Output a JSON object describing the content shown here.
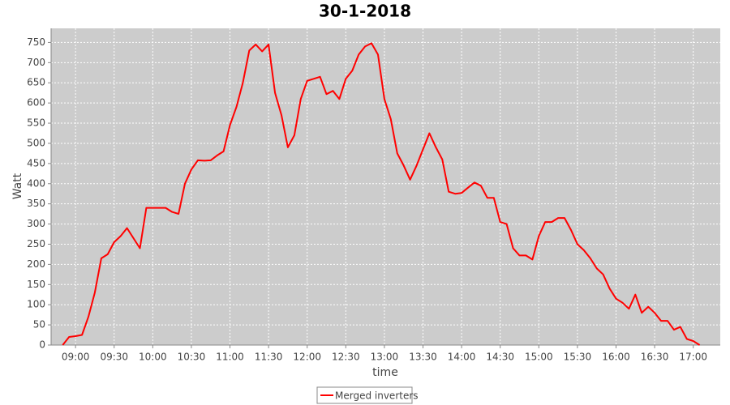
{
  "chart_data": {
    "type": "line",
    "title": "30-1-2018",
    "x_label": "time",
    "y_label": "Watt",
    "x": [
      "08:50",
      "08:55",
      "09:00",
      "09:05",
      "09:10",
      "09:15",
      "09:20",
      "09:25",
      "09:30",
      "09:35",
      "09:40",
      "09:45",
      "09:50",
      "09:55",
      "10:00",
      "10:05",
      "10:10",
      "10:15",
      "10:20",
      "10:25",
      "10:30",
      "10:35",
      "10:40",
      "10:45",
      "10:50",
      "10:55",
      "11:00",
      "11:05",
      "11:10",
      "11:15",
      "11:20",
      "11:25",
      "11:30",
      "11:35",
      "11:40",
      "11:45",
      "11:50",
      "11:55",
      "12:00",
      "12:05",
      "12:10",
      "12:15",
      "12:20",
      "12:25",
      "12:30",
      "12:35",
      "12:40",
      "12:45",
      "12:50",
      "12:55",
      "13:00",
      "13:05",
      "13:10",
      "13:15",
      "13:20",
      "13:25",
      "13:30",
      "13:35",
      "13:40",
      "13:45",
      "13:50",
      "13:55",
      "14:00",
      "14:05",
      "14:10",
      "14:15",
      "14:20",
      "14:25",
      "14:30",
      "14:35",
      "14:40",
      "14:45",
      "14:50",
      "14:55",
      "15:00",
      "15:05",
      "15:10",
      "15:15",
      "15:20",
      "15:25",
      "15:30",
      "15:35",
      "15:40",
      "15:45",
      "15:50",
      "15:55",
      "16:00",
      "16:05",
      "16:10",
      "16:15",
      "16:20",
      "16:25",
      "16:30",
      "16:35",
      "16:40",
      "16:45",
      "16:50",
      "16:55",
      "17:00",
      "17:05"
    ],
    "series": [
      {
        "name": "Merged inverters",
        "color": "#ff0000",
        "values": [
          0,
          20,
          22,
          25,
          70,
          130,
          215,
          225,
          255,
          270,
          290,
          265,
          240,
          340,
          340,
          340,
          340,
          330,
          325,
          400,
          435,
          458,
          457,
          458,
          470,
          480,
          545,
          590,
          650,
          730,
          745,
          728,
          745,
          625,
          570,
          490,
          520,
          610,
          655,
          660,
          665,
          622,
          630,
          610,
          660,
          680,
          720,
          740,
          748,
          720,
          610,
          560,
          475,
          445,
          410,
          445,
          485,
          525,
          490,
          460,
          380,
          375,
          377,
          390,
          403,
          395,
          365,
          365,
          305,
          300,
          240,
          222,
          222,
          212,
          270,
          305,
          305,
          315,
          315,
          285,
          250,
          235,
          215,
          190,
          175,
          140,
          115,
          105,
          90,
          125,
          80,
          95,
          80,
          60,
          60,
          38,
          45,
          15,
          10,
          0
        ]
      }
    ],
    "xlim": [
      "08:41",
      "17:21"
    ],
    "xticks": [
      "09:00",
      "09:30",
      "10:00",
      "10:30",
      "11:00",
      "11:30",
      "12:00",
      "12:30",
      "13:00",
      "13:30",
      "14:00",
      "14:30",
      "15:00",
      "15:30",
      "16:00",
      "16:30",
      "17:00"
    ],
    "ylim": [
      0,
      785
    ],
    "yticks": [
      0,
      50,
      100,
      150,
      200,
      250,
      300,
      350,
      400,
      450,
      500,
      550,
      600,
      650,
      700,
      750
    ],
    "grid": true,
    "legend": "bottom",
    "background": "#cccccc"
  }
}
